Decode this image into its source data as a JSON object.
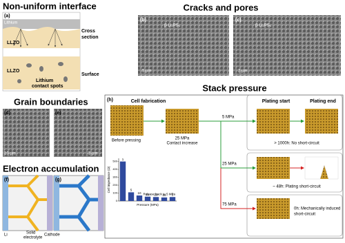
{
  "panels": {
    "a": {
      "title": "Non-uniform interface",
      "label": "(a)",
      "lithium": "Lithium",
      "llzo_top": "LLZO",
      "cross": "Cross",
      "section": "section",
      "llzo_bottom": "LLZO",
      "spots_1": "Lithium",
      "spots_2": "contact spots",
      "surface": "Surface"
    },
    "grain": {
      "title": "Grain boundaries",
      "d": "(d)",
      "e": "(e)",
      "d_scale": "10 μm",
      "e_scale": "3 μm"
    },
    "electron": {
      "title": "Electron accumulation",
      "f": "(f)",
      "g": "(g)",
      "li": "Li",
      "se_1": "Solid",
      "se_2": "electrolyte",
      "cathode": "Cathode"
    },
    "cracks": {
      "title": "Cracks and pores",
      "b": "(b)",
      "c": "(c)",
      "b_label": "β-Li₃PS₄",
      "c_label": "β-Li₃PS₄",
      "b_scale": "5 μm",
      "c_scale": "2 μm"
    },
    "stack": {
      "title": "Stack pressure",
      "h": "(h)",
      "fabrication": "Cell fabrication",
      "plating_start": "Plating start",
      "plating_end": "Plating end",
      "before": "Before pressing",
      "mpa25_a": "25 MPa",
      "contact": "Contact increase",
      "p5": "5 MPa",
      "p25": "25 MPa",
      "p75": "75 MPa",
      "r5": "> 1000h: No short-circuit",
      "r25": "~ 48h: Plating short-circuit",
      "r75_1": "0h: Mechanically induced",
      "r75_2": "short-circuit"
    }
  },
  "chart_data": {
    "type": "bar",
    "x_label": "Pressure (MPa)",
    "y_label": "Cell impedance (Ω)",
    "annotation": "Release back to 5 MPa",
    "categories": [
      "1",
      "5",
      "10",
      "15",
      "20",
      "25",
      "5"
    ],
    "values": [
      500,
      110,
      70,
      55,
      50,
      45,
      50
    ],
    "color": "#2f4a9e",
    "ylim": [
      0,
      540
    ],
    "yticks": [
      0,
      100,
      200,
      300,
      400,
      500
    ]
  }
}
